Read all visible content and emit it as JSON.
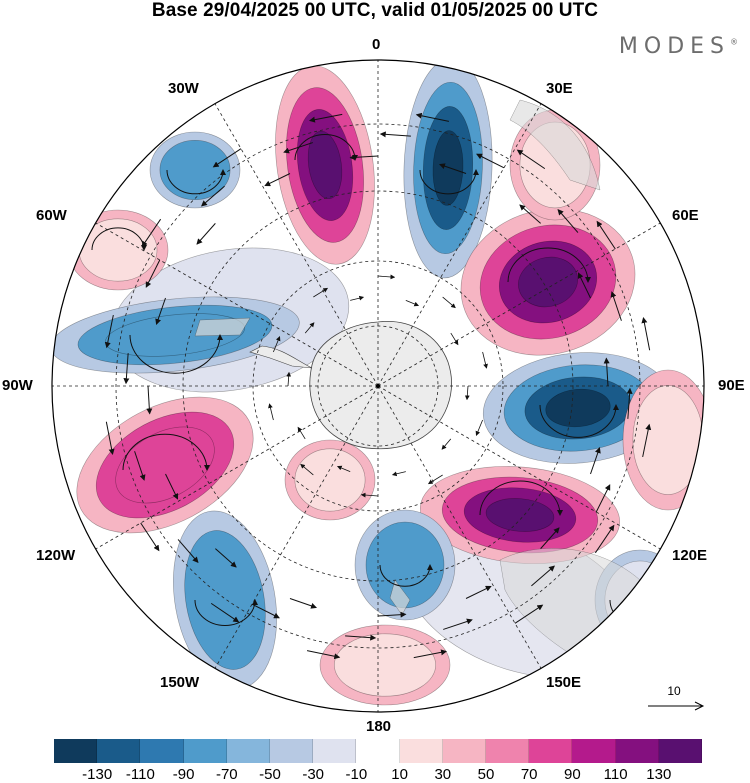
{
  "title": "Base 29/04/2025 00 UTC, valid 01/05/2025 00 UTC",
  "brand": "MODES",
  "brand_mark": "®",
  "longitude_labels": {
    "top": "0",
    "lon30e": "30E",
    "lon60e": "60E",
    "lon90e": "90E",
    "lon120e": "120E",
    "lon150e": "150E",
    "bottom": "180",
    "lon150w": "150W",
    "lon120w": "120W",
    "lon90w": "90W",
    "lon60w": "60W",
    "lon30w": "30W"
  },
  "reference_vector": {
    "label": "10"
  },
  "colorbar": {
    "colors": [
      "#0f3a5c",
      "#1a5b8a",
      "#2e79b0",
      "#4f9bcb",
      "#85b6dc",
      "#b7c9e3",
      "#dfe2ef",
      "#ffffff",
      "#fadede",
      "#f6b5c3",
      "#ef83ad",
      "#de4498",
      "#b41a8c",
      "#84107f",
      "#591070"
    ],
    "ticks": [
      "-130",
      "-110",
      "-90",
      "-70",
      "-50",
      "-30",
      "-10",
      "10",
      "30",
      "50",
      "70",
      "90",
      "110",
      "130"
    ]
  },
  "map_colors": {
    "antarctica": "#ececec",
    "land": "#d9d9d9",
    "strong_positive": "#84107f",
    "positive": "#de4498",
    "weak_positive": "#f6b5c3",
    "strong_negative": "#1a5b8a",
    "negative": "#4f9bcb",
    "weak_negative": "#b7c9e3"
  }
}
